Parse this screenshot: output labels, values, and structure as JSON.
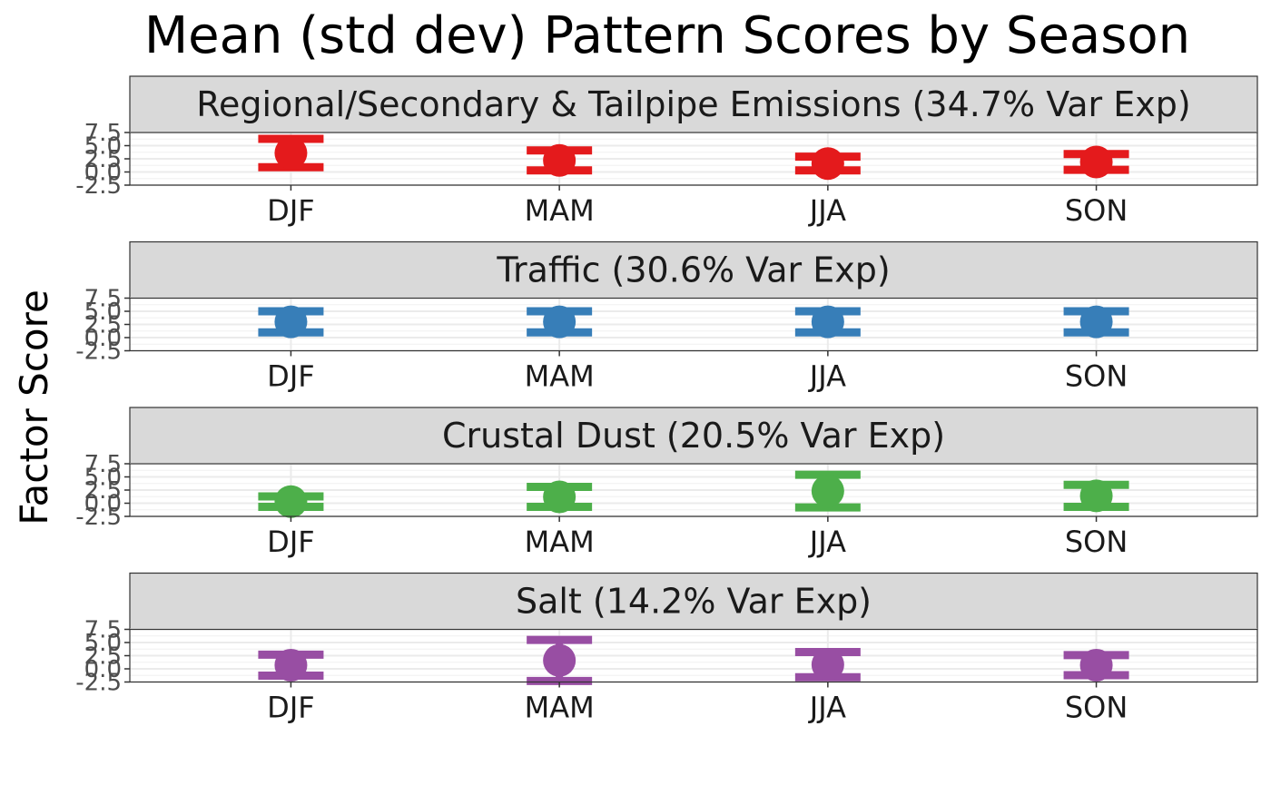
{
  "chart_data": {
    "type": "errorbar",
    "title": "Mean (std dev) Pattern Scores by Season",
    "xlabel": "",
    "ylabel": "Factor Score",
    "ylim": [
      -2.5,
      7.5
    ],
    "yticks": [
      -2.5,
      0.0,
      2.5,
      5.0,
      7.5
    ],
    "ytick_labels": [
      "-2.5",
      "0.0",
      "2.5",
      "5.0",
      "7.5"
    ],
    "grid": true,
    "legend": "none",
    "categories": [
      "DJF",
      "MAM",
      "JJA",
      "SON"
    ],
    "panels": [
      {
        "name": "Regional/Secondary & Tailpipe Emissions (34.7% Var Exp)",
        "color": "#E41A1C",
        "mean": [
          3.6,
          2.2,
          1.6,
          1.9
        ],
        "sd": [
          2.7,
          1.9,
          1.3,
          1.5
        ]
      },
      {
        "name": "Traffic (30.6% Var Exp)",
        "color": "#377EB8",
        "mean": [
          3.0,
          3.0,
          3.0,
          3.0
        ],
        "sd": [
          2.0,
          2.0,
          2.0,
          2.0
        ]
      },
      {
        "name": "Crustal Dust (20.5% Var Exp)",
        "color": "#4DAF4A",
        "mean": [
          0.3,
          1.2,
          2.3,
          1.4
        ],
        "sd": [
          1.0,
          1.9,
          3.1,
          2.1
        ]
      },
      {
        "name": "Salt (14.2% Var Exp)",
        "color": "#984EA3",
        "mean": [
          0.7,
          1.6,
          0.8,
          0.7
        ],
        "sd": [
          2.0,
          3.9,
          2.4,
          1.9
        ]
      }
    ]
  }
}
